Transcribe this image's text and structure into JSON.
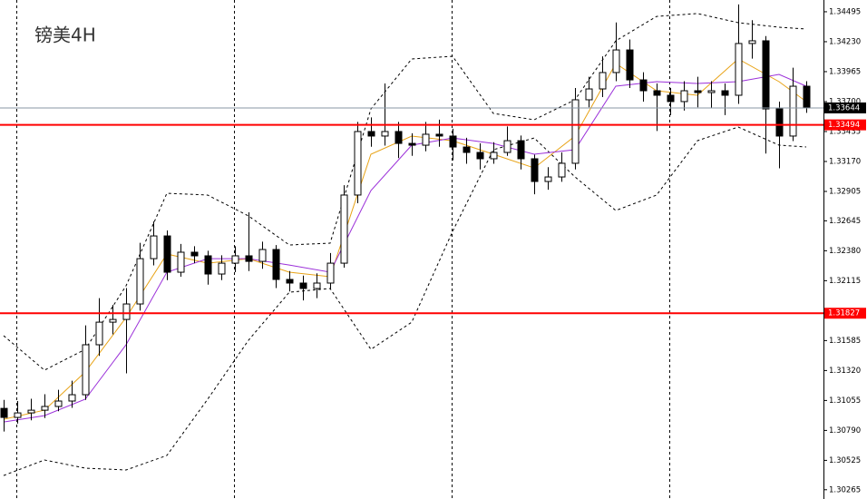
{
  "chart_data": {
    "type": "candlestick",
    "title": "镑美4H",
    "ylim": [
      1.30183,
      1.34599
    ],
    "yticks": [
      1.34495,
      {
        "value": 1.3423,
        "label": "1.34230"
      },
      1.33965,
      {
        "value": 1.337,
        "label": "1.33700"
      },
      1.33435,
      {
        "value": 1.3317,
        "label": "1.33170"
      },
      1.32905,
      1.32645,
      {
        "value": 1.3238,
        "label": "1.32380"
      },
      1.32115,
      1.31585,
      {
        "value": 1.3132,
        "label": "1.31320"
      },
      1.31055,
      {
        "value": 1.3079,
        "label": "1.30790"
      },
      1.30525,
      1.30265
    ],
    "up_color": "#ffffff",
    "down_color": "#000000",
    "ohlc": [
      [
        1.30985,
        1.3106,
        1.3078,
        1.30905
      ],
      [
        1.30905,
        1.3105,
        1.3085,
        1.30945
      ],
      [
        1.30945,
        1.3107,
        1.3088,
        1.30969
      ],
      [
        1.30969,
        1.3111,
        1.309,
        1.31002
      ],
      [
        1.31002,
        1.3115,
        1.3096,
        1.3105
      ],
      [
        1.3105,
        1.3123,
        1.3099,
        1.31106
      ],
      [
        1.31106,
        1.3172,
        1.3106,
        1.31548
      ],
      [
        1.31548,
        1.3196,
        1.3145,
        1.31748
      ],
      [
        1.31748,
        1.319,
        1.3164,
        1.31772
      ],
      [
        1.31772,
        1.3205,
        1.31295,
        1.31909
      ],
      [
        1.31909,
        1.3245,
        1.3185,
        1.3231
      ],
      [
        1.3231,
        1.3264,
        1.3225,
        1.32511
      ],
      [
        1.32511,
        1.3256,
        1.3212,
        1.3219
      ],
      [
        1.3219,
        1.3244,
        1.3215,
        1.32367
      ],
      [
        1.32367,
        1.3242,
        1.3227,
        1.32335
      ],
      [
        1.32335,
        1.3238,
        1.3208,
        1.32174
      ],
      [
        1.32174,
        1.3234,
        1.3212,
        1.3227
      ],
      [
        1.3227,
        1.3242,
        1.3219,
        1.32335
      ],
      [
        1.32335,
        1.3272,
        1.322,
        1.32286
      ],
      [
        1.32286,
        1.3246,
        1.3222,
        1.32391
      ],
      [
        1.32391,
        1.3243,
        1.3205,
        1.32126
      ],
      [
        1.32126,
        1.322,
        1.3202,
        1.32094
      ],
      [
        1.32094,
        1.3216,
        1.3194,
        1.32046
      ],
      [
        1.32046,
        1.3218,
        1.3196,
        1.32094
      ],
      [
        1.32094,
        1.3236,
        1.3204,
        1.3227
      ],
      [
        1.3227,
        1.3296,
        1.3223,
        1.32873
      ],
      [
        1.32873,
        1.3352,
        1.328,
        1.33435
      ],
      [
        1.33435,
        1.3356,
        1.333,
        1.33395
      ],
      [
        1.33395,
        1.3386,
        1.3331,
        1.33435
      ],
      [
        1.33435,
        1.3352,
        1.332,
        1.3333
      ],
      [
        1.3333,
        1.3342,
        1.3322,
        1.33314
      ],
      [
        1.33314,
        1.3352,
        1.3326,
        1.33411
      ],
      [
        1.33411,
        1.3354,
        1.333,
        1.33395
      ],
      [
        1.33395,
        1.3346,
        1.3318,
        1.33298
      ],
      [
        1.33298,
        1.3338,
        1.3315,
        1.3325
      ],
      [
        1.3325,
        1.3333,
        1.331,
        1.33194
      ],
      [
        1.33194,
        1.3334,
        1.3315,
        1.3325
      ],
      [
        1.3325,
        1.3348,
        1.3322,
        1.33354
      ],
      [
        1.33354,
        1.334,
        1.331,
        1.33194
      ],
      [
        1.33194,
        1.3323,
        1.3288,
        1.32993
      ],
      [
        1.32993,
        1.3312,
        1.3292,
        1.33033
      ],
      [
        1.33033,
        1.3325,
        1.3299,
        1.33154
      ],
      [
        1.33154,
        1.3382,
        1.331,
        1.33716
      ],
      [
        1.33716,
        1.3392,
        1.3365,
        1.33812
      ],
      [
        1.33812,
        1.341,
        1.3374,
        1.33957
      ],
      [
        1.33957,
        1.344,
        1.3388,
        1.34157
      ],
      [
        1.34157,
        1.3425,
        1.3382,
        1.33892
      ],
      [
        1.33892,
        1.3396,
        1.337,
        1.33796
      ],
      [
        1.33796,
        1.3386,
        1.3344,
        1.33756
      ],
      [
        1.33756,
        1.3382,
        1.3358,
        1.337
      ],
      [
        1.337,
        1.3388,
        1.3362,
        1.33796
      ],
      [
        1.33796,
        1.3392,
        1.3365,
        1.3378
      ],
      [
        1.3378,
        1.3388,
        1.3364,
        1.33796
      ],
      [
        1.33796,
        1.3386,
        1.3358,
        1.33756
      ],
      [
        1.33756,
        1.3456,
        1.3368,
        1.34214
      ],
      [
        1.34214,
        1.3442,
        1.3408,
        1.34238
      ],
      [
        1.34238,
        1.3428,
        1.3324,
        1.33635
      ],
      [
        1.33635,
        1.337,
        1.3311,
        1.33395
      ],
      [
        1.33395,
        1.34,
        1.3335,
        1.33836
      ],
      [
        1.33836,
        1.3388,
        1.336,
        1.33644
      ]
    ],
    "line_x": [
      0,
      3,
      6,
      9,
      12,
      15,
      18,
      21,
      24,
      27,
      30,
      33,
      36,
      39,
      42,
      45,
      48,
      51,
      54,
      57,
      59
    ],
    "lines": [
      {
        "color": "#000000",
        "dashed": true,
        "values": [
          1.31628,
          1.31323,
          1.31507,
          1.3207,
          1.32889,
          1.32873,
          1.32688,
          1.32431,
          1.32447,
          1.33635,
          1.34077,
          1.34101,
          1.33595,
          1.33539,
          1.33716,
          1.34238,
          1.34454,
          1.34479,
          1.34398,
          1.34358,
          1.34342
        ]
      },
      {
        "color": "#000000",
        "dashed": true,
        "values": [
          1.30391,
          1.30528,
          1.30456,
          1.3044,
          1.30568,
          1.31066,
          1.31588,
          1.32013,
          1.32046,
          1.31507,
          1.31748,
          1.32551,
          1.33274,
          1.33378,
          1.33033,
          1.32736,
          1.32873,
          1.33354,
          1.33475,
          1.33314,
          1.33298
        ]
      },
      {
        "color": "#e8a317",
        "dashed": false,
        "values": [
          1.30889,
          1.30969,
          1.31307,
          1.31789,
          1.32351,
          1.3227,
          1.3231,
          1.3219,
          1.3215,
          1.33234,
          1.33395,
          1.33354,
          1.33234,
          1.33113,
          1.33395,
          1.34037,
          1.33796,
          1.33756,
          1.34077,
          1.33876,
          1.337
        ]
      },
      {
        "color": "#9b30d9",
        "dashed": false,
        "values": [
          1.30865,
          1.30921,
          1.31066,
          1.31548,
          1.3219,
          1.3231,
          1.3231,
          1.32254,
          1.3219,
          1.32913,
          1.33314,
          1.33378,
          1.3333,
          1.33234,
          1.33274,
          1.33836,
          1.33876,
          1.3386,
          1.33876,
          1.33941,
          1.33836
        ]
      }
    ],
    "levels": [
      {
        "value": 1.33644,
        "color": "#8a97a6",
        "label_color": "#000000"
      },
      {
        "value": 1.33494,
        "color": "#ff0000",
        "label_color": "#ff0000"
      },
      {
        "value": 1.31827,
        "color": "#ff0000",
        "label_color": "#ff0000"
      }
    ]
  }
}
